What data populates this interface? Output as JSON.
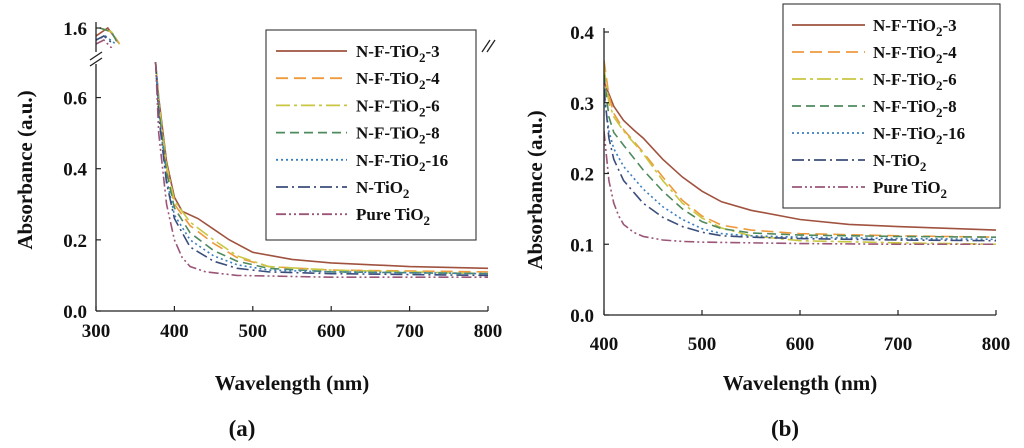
{
  "chart_data": [
    {
      "type": "line",
      "panel_label": "(a)",
      "xlabel": "Wavelength (nm)",
      "ylabel": "Absorbance (a.u.)",
      "xlim": [
        300,
        800
      ],
      "x_ticks": [
        300,
        400,
        500,
        600,
        700,
        800
      ],
      "y_axis_break": true,
      "ylim_lower": [
        0.0,
        0.7
      ],
      "ylim_upper": [
        1.55,
        1.6
      ],
      "y_ticks_lower": [
        "0.0",
        "0.2",
        "0.4",
        "0.6"
      ],
      "y_ticks_upper": [
        "1.6"
      ],
      "legend_position": "top-right",
      "series": [
        {
          "name": "N-F-TiO",
          "sub": "2",
          "suffix": "-3",
          "color": "#a0523f",
          "dash": "",
          "points": [
            [
              300,
              1.58
            ],
            [
              315,
              1.6
            ],
            [
              330,
              1.56
            ],
            [
              376,
              0.7
            ],
            [
              380,
              0.6
            ],
            [
              390,
              0.42
            ],
            [
              400,
              0.32
            ],
            [
              410,
              0.28
            ],
            [
              430,
              0.26
            ],
            [
              450,
              0.23
            ],
            [
              470,
              0.2
            ],
            [
              500,
              0.165
            ],
            [
              550,
              0.145
            ],
            [
              600,
              0.135
            ],
            [
              700,
              0.125
            ],
            [
              800,
              0.12
            ]
          ]
        },
        {
          "name": "N-F-TiO",
          "sub": "2",
          "suffix": "-4",
          "color": "#ee9a3c",
          "dash": "12 6",
          "points": [
            [
              305,
              1.6
            ],
            [
              320,
              1.59
            ],
            [
              330,
              1.56
            ],
            [
              376,
              0.7
            ],
            [
              380,
              0.58
            ],
            [
              390,
              0.4
            ],
            [
              400,
              0.3
            ],
            [
              420,
              0.24
            ],
            [
              450,
              0.19
            ],
            [
              480,
              0.15
            ],
            [
              520,
              0.125
            ],
            [
              600,
              0.115
            ],
            [
              800,
              0.11
            ]
          ]
        },
        {
          "name": "N-F-TiO",
          "sub": "2",
          "suffix": "-6",
          "color": "#c9c641",
          "dash": "14 4 3 4",
          "points": [
            [
              305,
              1.6
            ],
            [
              320,
              1.59
            ],
            [
              330,
              1.56
            ],
            [
              376,
              0.7
            ],
            [
              380,
              0.59
            ],
            [
              390,
              0.41
            ],
            [
              400,
              0.31
            ],
            [
              420,
              0.25
            ],
            [
              450,
              0.2
            ],
            [
              480,
              0.155
            ],
            [
              520,
              0.125
            ],
            [
              600,
              0.115
            ],
            [
              800,
              0.105
            ]
          ]
        },
        {
          "name": "N-F-TiO",
          "sub": "2",
          "suffix": "-8",
          "color": "#4f8a5d",
          "dash": "9 5",
          "points": [
            [
              305,
              1.6
            ],
            [
              320,
              1.59
            ],
            [
              328,
              1.56
            ],
            [
              376,
              0.7
            ],
            [
              380,
              0.57
            ],
            [
              390,
              0.39
            ],
            [
              400,
              0.29
            ],
            [
              420,
              0.22
            ],
            [
              450,
              0.17
            ],
            [
              480,
              0.14
            ],
            [
              520,
              0.12
            ],
            [
              600,
              0.11
            ],
            [
              800,
              0.105
            ]
          ]
        },
        {
          "name": "N-F-TiO",
          "sub": "2",
          "suffix": "-16",
          "color": "#3a7fc0",
          "dash": "2 3",
          "points": [
            [
              300,
              1.57
            ],
            [
              312,
              1.58
            ],
            [
              325,
              1.56
            ],
            [
              376,
              0.7
            ],
            [
              380,
              0.56
            ],
            [
              390,
              0.37
            ],
            [
              400,
              0.27
            ],
            [
              420,
              0.2
            ],
            [
              450,
              0.155
            ],
            [
              480,
              0.13
            ],
            [
              520,
              0.115
            ],
            [
              600,
              0.11
            ],
            [
              800,
              0.105
            ]
          ]
        },
        {
          "name": "N-TiO",
          "sub": "2",
          "suffix": "",
          "color": "#3b4d7a",
          "dash": "12 4 2 4",
          "points": [
            [
              300,
              1.57
            ],
            [
              310,
              1.58
            ],
            [
              322,
              1.56
            ],
            [
              376,
              0.7
            ],
            [
              380,
              0.55
            ],
            [
              390,
              0.36
            ],
            [
              400,
              0.26
            ],
            [
              420,
              0.18
            ],
            [
              450,
              0.14
            ],
            [
              480,
              0.12
            ],
            [
              520,
              0.11
            ],
            [
              600,
              0.105
            ],
            [
              800,
              0.1
            ]
          ]
        },
        {
          "name": "Pure TiO",
          "sub": "2",
          "suffix": "",
          "color": "#9b5577",
          "dash": "10 3 2 3 2 3",
          "points": [
            [
              300,
              1.56
            ],
            [
              310,
              1.57
            ],
            [
              320,
              1.55
            ],
            [
              376,
              0.7
            ],
            [
              380,
              0.5
            ],
            [
              390,
              0.3
            ],
            [
              400,
              0.2
            ],
            [
              410,
              0.15
            ],
            [
              420,
              0.125
            ],
            [
              440,
              0.11
            ],
            [
              480,
              0.1
            ],
            [
              600,
              0.095
            ],
            [
              800,
              0.095
            ]
          ]
        }
      ]
    },
    {
      "type": "line",
      "panel_label": "(b)",
      "xlabel": "Wavelength (nm)",
      "ylabel": "Absorbance (a.u.)",
      "xlim": [
        400,
        800
      ],
      "ylim": [
        0.0,
        0.4
      ],
      "x_ticks": [
        400,
        500,
        600,
        700,
        800
      ],
      "y_ticks": [
        "0.0",
        "0.1",
        "0.2",
        "0.3",
        "0.4"
      ],
      "legend_position": "top-right",
      "series": [
        {
          "name": "N-F-TiO",
          "sub": "2",
          "suffix": "-3",
          "color": "#a0523f",
          "dash": "",
          "points": [
            [
              400,
              0.33
            ],
            [
              410,
              0.295
            ],
            [
              420,
              0.275
            ],
            [
              430,
              0.262
            ],
            [
              440,
              0.25
            ],
            [
              460,
              0.22
            ],
            [
              480,
              0.195
            ],
            [
              500,
              0.175
            ],
            [
              520,
              0.16
            ],
            [
              550,
              0.148
            ],
            [
              600,
              0.135
            ],
            [
              650,
              0.128
            ],
            [
              700,
              0.125
            ],
            [
              800,
              0.12
            ]
          ]
        },
        {
          "name": "N-F-TiO",
          "sub": "2",
          "suffix": "-4",
          "color": "#ee9a3c",
          "dash": "12 6",
          "points": [
            [
              400,
              0.36
            ],
            [
              405,
              0.31
            ],
            [
              410,
              0.285
            ],
            [
              420,
              0.262
            ],
            [
              440,
              0.23
            ],
            [
              460,
              0.195
            ],
            [
              480,
              0.162
            ],
            [
              500,
              0.14
            ],
            [
              520,
              0.127
            ],
            [
              550,
              0.12
            ],
            [
              600,
              0.115
            ],
            [
              700,
              0.112
            ],
            [
              800,
              0.11
            ]
          ]
        },
        {
          "name": "N-F-TiO",
          "sub": "2",
          "suffix": "-6",
          "color": "#c9c641",
          "dash": "14 4 3 4",
          "points": [
            [
              400,
              0.35
            ],
            [
              405,
              0.3
            ],
            [
              410,
              0.28
            ],
            [
              420,
              0.26
            ],
            [
              440,
              0.228
            ],
            [
              460,
              0.19
            ],
            [
              480,
              0.158
            ],
            [
              500,
              0.137
            ],
            [
              520,
              0.123
            ],
            [
              550,
              0.112
            ],
            [
              600,
              0.105
            ],
            [
              700,
              0.102
            ],
            [
              800,
              0.1
            ]
          ]
        },
        {
          "name": "N-F-TiO",
          "sub": "2",
          "suffix": "-8",
          "color": "#4f8a5d",
          "dash": "9 5",
          "points": [
            [
              400,
              0.34
            ],
            [
              405,
              0.28
            ],
            [
              410,
              0.258
            ],
            [
              420,
              0.24
            ],
            [
              440,
              0.205
            ],
            [
              460,
              0.175
            ],
            [
              480,
              0.15
            ],
            [
              500,
              0.132
            ],
            [
              520,
              0.122
            ],
            [
              550,
              0.116
            ],
            [
              600,
              0.113
            ],
            [
              700,
              0.111
            ],
            [
              800,
              0.11
            ]
          ]
        },
        {
          "name": "N-F-TiO",
          "sub": "2",
          "suffix": "-16",
          "color": "#3a7fc0",
          "dash": "2 3",
          "points": [
            [
              400,
              0.31
            ],
            [
              405,
              0.26
            ],
            [
              410,
              0.235
            ],
            [
              420,
              0.21
            ],
            [
              440,
              0.178
            ],
            [
              460,
              0.153
            ],
            [
              480,
              0.135
            ],
            [
              500,
              0.122
            ],
            [
              520,
              0.115
            ],
            [
              550,
              0.112
            ],
            [
              600,
              0.11
            ],
            [
              700,
              0.108
            ],
            [
              800,
              0.107
            ]
          ]
        },
        {
          "name": "N-TiO",
          "sub": "2",
          "suffix": "",
          "color": "#3b4d7a",
          "dash": "12 4 2 4",
          "points": [
            [
              400,
              0.32
            ],
            [
              405,
              0.25
            ],
            [
              410,
              0.22
            ],
            [
              420,
              0.19
            ],
            [
              440,
              0.158
            ],
            [
              460,
              0.138
            ],
            [
              480,
              0.125
            ],
            [
              500,
              0.117
            ],
            [
              520,
              0.112
            ],
            [
              550,
              0.11
            ],
            [
              600,
              0.108
            ],
            [
              700,
              0.106
            ],
            [
              800,
              0.105
            ]
          ]
        },
        {
          "name": "Pure TiO",
          "sub": "2",
          "suffix": "",
          "color": "#9b5577",
          "dash": "10 3 2 3 2 3",
          "points": [
            [
              400,
              0.26
            ],
            [
              405,
              0.19
            ],
            [
              410,
              0.158
            ],
            [
              415,
              0.14
            ],
            [
              420,
              0.128
            ],
            [
              430,
              0.117
            ],
            [
              440,
              0.111
            ],
            [
              460,
              0.106
            ],
            [
              480,
              0.104
            ],
            [
              500,
              0.103
            ],
            [
              550,
              0.102
            ],
            [
              600,
              0.101
            ],
            [
              700,
              0.1
            ],
            [
              800,
              0.1
            ]
          ]
        }
      ]
    }
  ]
}
